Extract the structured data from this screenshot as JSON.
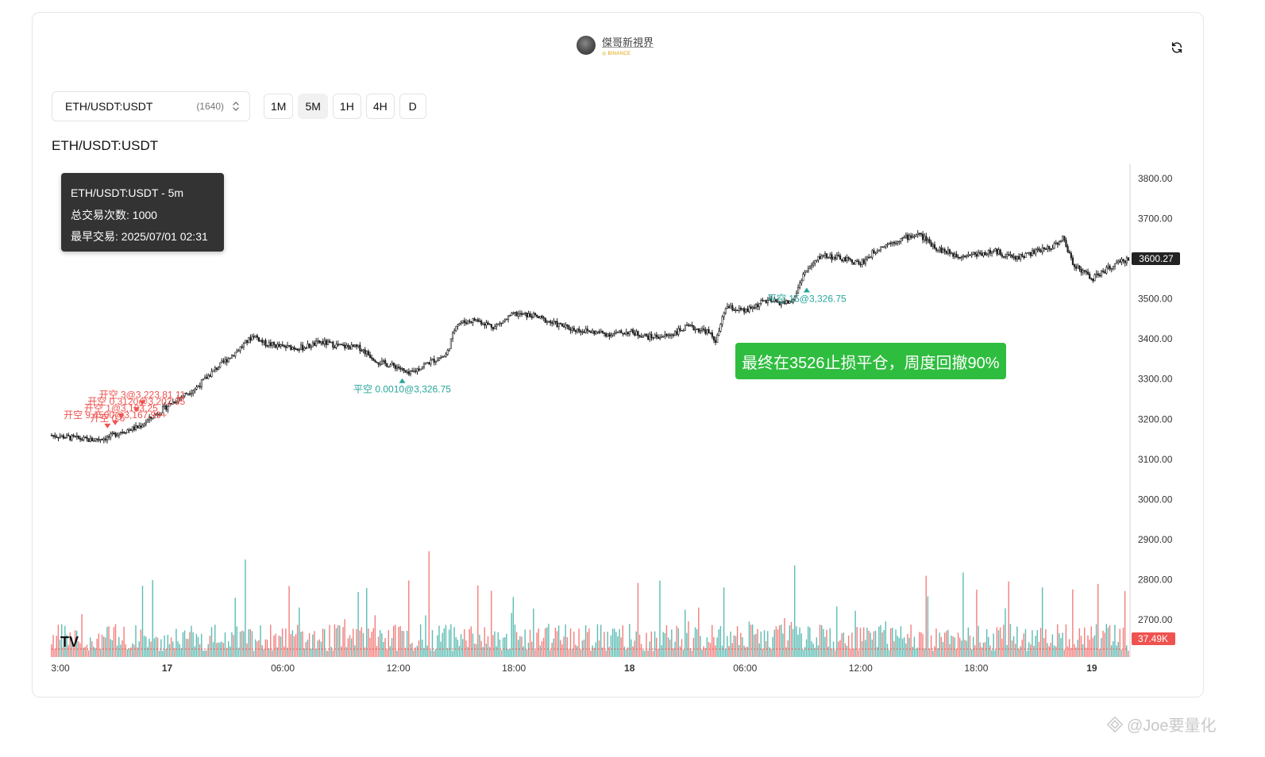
{
  "brand": {
    "name": "傑哥新視界",
    "sub": "◎ BINANCE"
  },
  "toolbar": {
    "symbol": "ETH/USDT:USDT",
    "symbol_count": "(1640)",
    "timeframes": [
      {
        "label": "1M",
        "active": false
      },
      {
        "label": "5M",
        "active": true
      },
      {
        "label": "1H",
        "active": false
      },
      {
        "label": "4H",
        "active": false
      },
      {
        "label": "D",
        "active": false
      }
    ]
  },
  "chart_title": "ETH/USDT:USDT",
  "tooltip": {
    "line1": "ETH/USDT:USDT - 5m",
    "line2": "总交易次数: 1000",
    "line3": "最早交易: 2025/07/01 02:31"
  },
  "callout": "最终在3526止损平仓，周度回撤90%",
  "watermark": "@Joe要量化",
  "colors": {
    "up": "#26a69a",
    "down": "#ef5350",
    "candle": "#222222",
    "callout": "#2fbd3f"
  },
  "chart_data": {
    "type": "candlestick",
    "y_ticks": [
      "3800.00",
      "3700.00",
      "3600.00",
      "3500.00",
      "3400.00",
      "3300.00",
      "3200.00",
      "3100.00",
      "3000.00",
      "2900.00",
      "2800.00",
      "2700.00"
    ],
    "y_range": [
      2650,
      3835
    ],
    "x_ticks": [
      {
        "label": "3:00",
        "bold": false
      },
      {
        "label": "17",
        "bold": true
      },
      {
        "label": "06:00",
        "bold": false
      },
      {
        "label": "12:00",
        "bold": false
      },
      {
        "label": "18:00",
        "bold": false
      },
      {
        "label": "18",
        "bold": true
      },
      {
        "label": "06:00",
        "bold": false
      },
      {
        "label": "12:00",
        "bold": false
      },
      {
        "label": "18:00",
        "bold": false
      },
      {
        "label": "19",
        "bold": true
      }
    ],
    "x_tick_hours": [
      0,
      6,
      12,
      18,
      24,
      30,
      36,
      42,
      48,
      54
    ],
    "x_hours_span": 55.9,
    "last_price": "3600.27",
    "last_volume": "37.49K",
    "price_path": [
      [
        0,
        3160
      ],
      [
        2,
        3148
      ],
      [
        3,
        3155
      ],
      [
        3.5,
        3168
      ],
      [
        4.5,
        3180
      ],
      [
        5.5,
        3215
      ],
      [
        6.5,
        3250
      ],
      [
        7.5,
        3278
      ],
      [
        8.5,
        3325
      ],
      [
        9.5,
        3365
      ],
      [
        10.5,
        3410
      ],
      [
        11,
        3390
      ],
      [
        12,
        3380
      ],
      [
        13,
        3378
      ],
      [
        14,
        3392
      ],
      [
        15,
        3382
      ],
      [
        16,
        3378
      ],
      [
        17,
        3342
      ],
      [
        18,
        3330
      ],
      [
        18.5,
        3310
      ],
      [
        19.5,
        3340
      ],
      [
        20.5,
        3360
      ],
      [
        21,
        3438
      ],
      [
        22,
        3448
      ],
      [
        23,
        3430
      ],
      [
        24,
        3462
      ],
      [
        25,
        3458
      ],
      [
        26,
        3440
      ],
      [
        27,
        3425
      ],
      [
        28,
        3418
      ],
      [
        29,
        3412
      ],
      [
        30,
        3418
      ],
      [
        31,
        3405
      ],
      [
        32,
        3408
      ],
      [
        33,
        3430
      ],
      [
        34,
        3420
      ],
      [
        34.5,
        3395
      ],
      [
        35,
        3480
      ],
      [
        36,
        3468
      ],
      [
        37,
        3495
      ],
      [
        38,
        3490
      ],
      [
        38.5,
        3495
      ],
      [
        39,
        3560
      ],
      [
        40,
        3610
      ],
      [
        41,
        3600
      ],
      [
        42,
        3588
      ],
      [
        43,
        3630
      ],
      [
        44,
        3648
      ],
      [
        45,
        3662
      ],
      [
        46,
        3625
      ],
      [
        47,
        3608
      ],
      [
        48,
        3612
      ],
      [
        49,
        3618
      ],
      [
        50,
        3602
      ],
      [
        51,
        3616
      ],
      [
        52,
        3632
      ],
      [
        52.5,
        3652
      ],
      [
        53,
        3590
      ],
      [
        54,
        3550
      ],
      [
        55,
        3580
      ],
      [
        55.9,
        3600
      ]
    ],
    "trades": [
      {
        "side": "open-short",
        "label": "开空 3@3,223.81 11",
        "hour": 4.7,
        "price": 3235
      },
      {
        "side": "open-short",
        "label": "开空 0.3120@3,202.95",
        "hour": 4.4,
        "price": 3218
      },
      {
        "side": "open-short",
        "label": "开空 1@3,183.25",
        "hour": 3.6,
        "price": 3202
      },
      {
        "side": "open-short",
        "label": "开空 9.4500@3,167.99+",
        "hour": 3.3,
        "price": 3185
      },
      {
        "side": "open-short",
        "label": "开空 0.6",
        "hour": 2.9,
        "price": 3177
      },
      {
        "side": "close-short",
        "label": "平空 0.0010@3,326.75",
        "hour": 18.2,
        "price": 3302
      },
      {
        "side": "close-short",
        "label": "平空 15@3,326.75",
        "hour": 39.2,
        "price": 3528
      }
    ]
  }
}
